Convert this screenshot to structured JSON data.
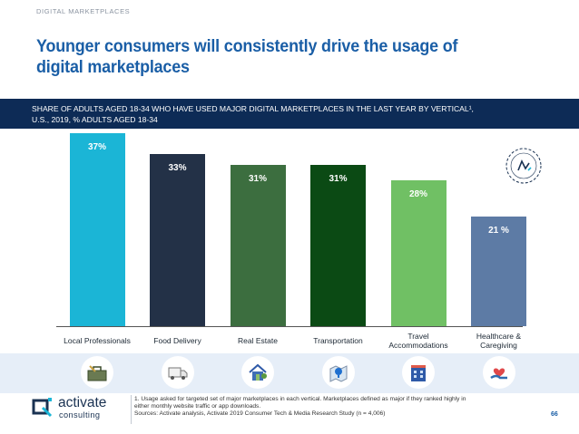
{
  "header": {
    "section_tag": "DIGITAL MARKETPLACES",
    "title": "Younger consumers will consistently drive the usage of digital marketplaces"
  },
  "banner": {
    "line1": "SHARE OF ADULTS AGED 18-34 WHO HAVE USED MAJOR DIGITAL MARKETPLACES IN THE LAST YEAR BY VERTICAL¹,",
    "line2": "U.S., 2019, % ADULTS AGED 18-34"
  },
  "chart_data": {
    "type": "bar",
    "title": "SHARE OF ADULTS AGED 18-34 WHO HAVE USED MAJOR DIGITAL MARKETPLACES IN THE LAST YEAR BY VERTICAL¹, U.S., 2019, % ADULTS AGED 18-34",
    "categories": [
      "Local Professionals",
      "Food Delivery",
      "Real Estate",
      "Transportation",
      "Travel Accommodations",
      "Healthcare & Caregiving"
    ],
    "category_lines": [
      [
        "Local Professionals"
      ],
      [
        "Food Delivery"
      ],
      [
        "Real Estate"
      ],
      [
        "Transportation"
      ],
      [
        "Travel",
        "Accommodations"
      ],
      [
        "Healthcare &",
        "Caregiving"
      ]
    ],
    "values": [
      37,
      33,
      31,
      31,
      28,
      21
    ],
    "value_labels": [
      "37%",
      "33%",
      "31%",
      "31%",
      "28%",
      "21 %"
    ],
    "colors": [
      "#1bb5d6",
      "#233147",
      "#3c6e3f",
      "#0b4a14",
      "#70c064",
      "#5d7ba5"
    ],
    "icons": [
      "toolbox-icon",
      "delivery-truck-icon",
      "house-icon",
      "map-pin-icon",
      "hotel-icon",
      "heart-hand-icon"
    ],
    "xlabel": "",
    "ylabel": "",
    "ylim": [
      0,
      37
    ],
    "grid": false,
    "legend": "none"
  },
  "footer": {
    "logo_name": "activate",
    "logo_sub": "consulting",
    "footnote1": "1. Usage asked for targeted set of major marketplaces in each vertical. Marketplaces defined as major if they ranked highly in",
    "footnote2": "either monthly website traffic or app downloads.",
    "sources": "Sources: Activate analysis, Activate 2019 Consumer Tech & Media Research Study (n = 4,006)",
    "page_number": "66"
  },
  "colors": {
    "title": "#1a5ea6",
    "banner_bg": "#0d2b56",
    "icon_strip": "#e6eef8"
  }
}
